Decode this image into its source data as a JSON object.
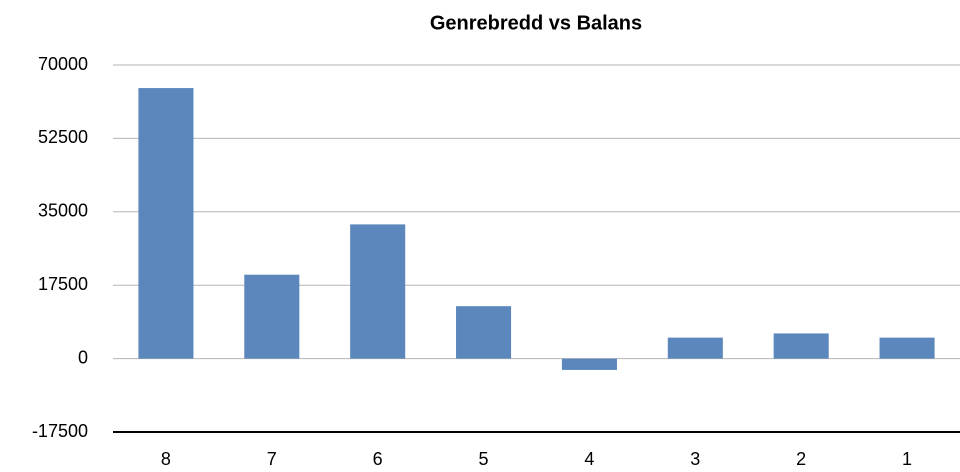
{
  "chart_data": {
    "type": "bar",
    "title": "Genrebredd vs Balans",
    "categories": [
      "8",
      "7",
      "6",
      "5",
      "4",
      "3",
      "2",
      "1"
    ],
    "values": [
      64500,
      20000,
      32000,
      12500,
      -2700,
      5000,
      6000,
      5000
    ],
    "color": "#5b87bd",
    "ylim": [
      -17500,
      70000
    ],
    "yticks": [
      -17500,
      0,
      17500,
      35000,
      52500,
      70000
    ],
    "grid": true
  }
}
